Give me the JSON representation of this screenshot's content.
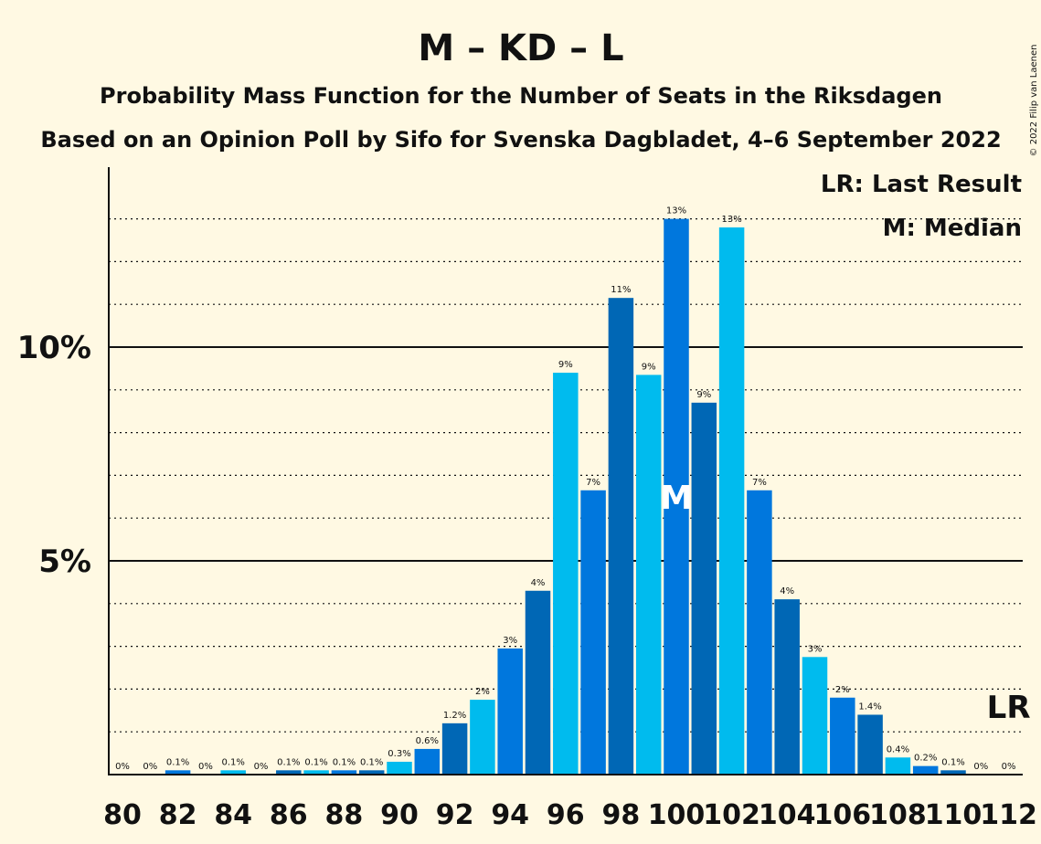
{
  "title": "M – KD – L",
  "subtitle1": "Probability Mass Function for the Number of Seats in the Riksdagen",
  "subtitle2": "Based on an Opinion Poll by Sifo for Svenska Dagbladet, 4–6 September 2022",
  "copyright": "© 2022 Filip van Laenen",
  "legend": {
    "last_result": "LR: Last Result",
    "median": "M: Median"
  },
  "colors": {
    "background": "#fff9e3",
    "bar_cycle": [
      "#0067b5",
      "#00bbee",
      "#0077dd"
    ]
  },
  "chart_data": {
    "type": "bar",
    "x": [
      80,
      81,
      82,
      83,
      84,
      85,
      86,
      87,
      88,
      89,
      90,
      91,
      92,
      93,
      94,
      95,
      96,
      97,
      98,
      99,
      100,
      101,
      102,
      103,
      104,
      105,
      106,
      107,
      108,
      109,
      110,
      111,
      112
    ],
    "values": [
      0,
      0,
      0.1,
      0,
      0.1,
      0,
      0.1,
      0.1,
      0.1,
      0.1,
      0.3,
      0.6,
      1.2,
      1.75,
      2.95,
      4.3,
      9.4,
      6.65,
      11.15,
      9.35,
      13.0,
      8.7,
      12.8,
      6.65,
      4.1,
      2.75,
      1.8,
      1.4,
      0.4,
      0.2,
      0.1,
      0,
      0
    ],
    "data_labels": [
      "0%",
      "0%",
      "0.1%",
      "0%",
      "0.1%",
      "0%",
      "0.1%",
      "0.1%",
      "0.1%",
      "0.1%",
      "0.3%",
      "0.6%",
      "1.2%",
      "2%",
      "3%",
      "4%",
      "9%",
      "7%",
      "11%",
      "9%",
      "13%",
      "9%",
      "13%",
      "7%",
      "4%",
      "3%",
      "2%",
      "1.4%",
      "0.4%",
      "0.2%",
      "0.1%",
      "0%",
      "0%"
    ],
    "x_tick_labels": [
      "80",
      "82",
      "84",
      "86",
      "88",
      "90",
      "92",
      "94",
      "96",
      "98",
      "100",
      "102",
      "104",
      "106",
      "108",
      "110",
      "112"
    ],
    "y_ticks": [
      {
        "value": 5,
        "label": "5%"
      },
      {
        "value": 10,
        "label": "10%"
      }
    ],
    "ylim": [
      0,
      14
    ],
    "median": {
      "x": 100,
      "label": "M"
    },
    "last_result": {
      "x": 112,
      "label": "LR"
    },
    "grid": "dotted every 1%, solid at 5% and 10%",
    "legend_position": "top-right"
  }
}
